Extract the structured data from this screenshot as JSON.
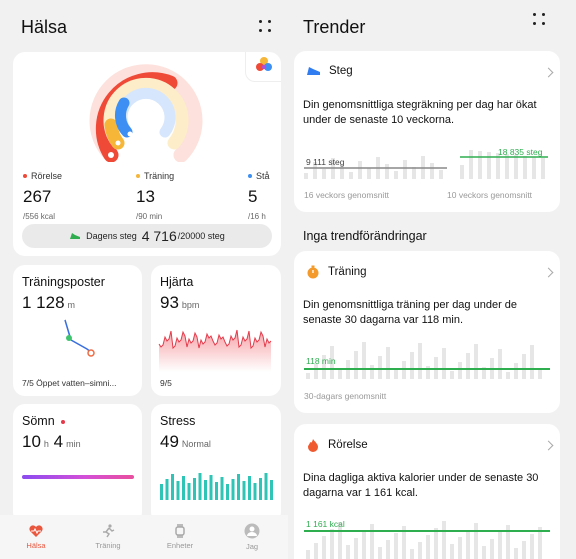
{
  "health": {
    "title": "Hälsa",
    "rings": {
      "movement": {
        "label": "Rörelse",
        "value": "267",
        "unit": "/556 kcal",
        "color": "#ef4a38",
        "progress": 0.48
      },
      "training": {
        "label": "Träning",
        "value": "13",
        "unit": "/90 min",
        "color": "#f6b638",
        "progress": 0.14
      },
      "stand": {
        "label": "Stå",
        "value": "5",
        "unit": "/16 h",
        "color": "#3d8ff3",
        "progress": 0.31
      }
    },
    "steps": {
      "label": "Dagens steg",
      "value": "4 716",
      "goal": "/20000 steg"
    },
    "tiles": {
      "training_records": {
        "title": "Träningsposter",
        "value": "1 128",
        "unit": "m",
        "footer": "7/5 Öppet vatten–simni..."
      },
      "heart": {
        "title": "Hjärta",
        "value": "93",
        "unit": "bpm",
        "footer": "9/5"
      },
      "sleep": {
        "title": "Sömn",
        "hours": "10",
        "h_unit": "h",
        "minutes": "4",
        "m_unit": "min"
      },
      "stress": {
        "title": "Stress",
        "value": "49",
        "unit": "Normal"
      }
    },
    "nav": [
      {
        "label": "Hälsa",
        "icon": "heart-pulse-icon",
        "active": true
      },
      {
        "label": "Träning",
        "icon": "running-icon",
        "active": false
      },
      {
        "label": "Enheter",
        "icon": "watch-icon",
        "active": false
      },
      {
        "label": "Jag",
        "icon": "profile-icon",
        "active": false
      }
    ]
  },
  "trends": {
    "title": "Trender",
    "steps_card": {
      "title": "Steg",
      "description": "Din genomsnittliga stegräkning per dag har ökat under de senaste 10 veckorna.",
      "old_value": "9 111 steg",
      "new_value": "18 835 steg",
      "old_note": "16 veckors genomsnitt",
      "new_note": "10 veckors genomsnitt"
    },
    "no_change_title": "Inga trendförändringar",
    "training_card": {
      "title": "Träning",
      "description": "Din genomsnittliga träning per dag under de senaste 30 dagarna var 118 min.",
      "avg_label": "118 min",
      "note": "30-dagars genomsnitt"
    },
    "movement_card": {
      "title": "Rörelse",
      "description": "Dina dagliga aktiva kalorier under de senaste 30 dagarna var 1 161 kcal.",
      "avg_label": "1 161 kcal"
    }
  }
}
